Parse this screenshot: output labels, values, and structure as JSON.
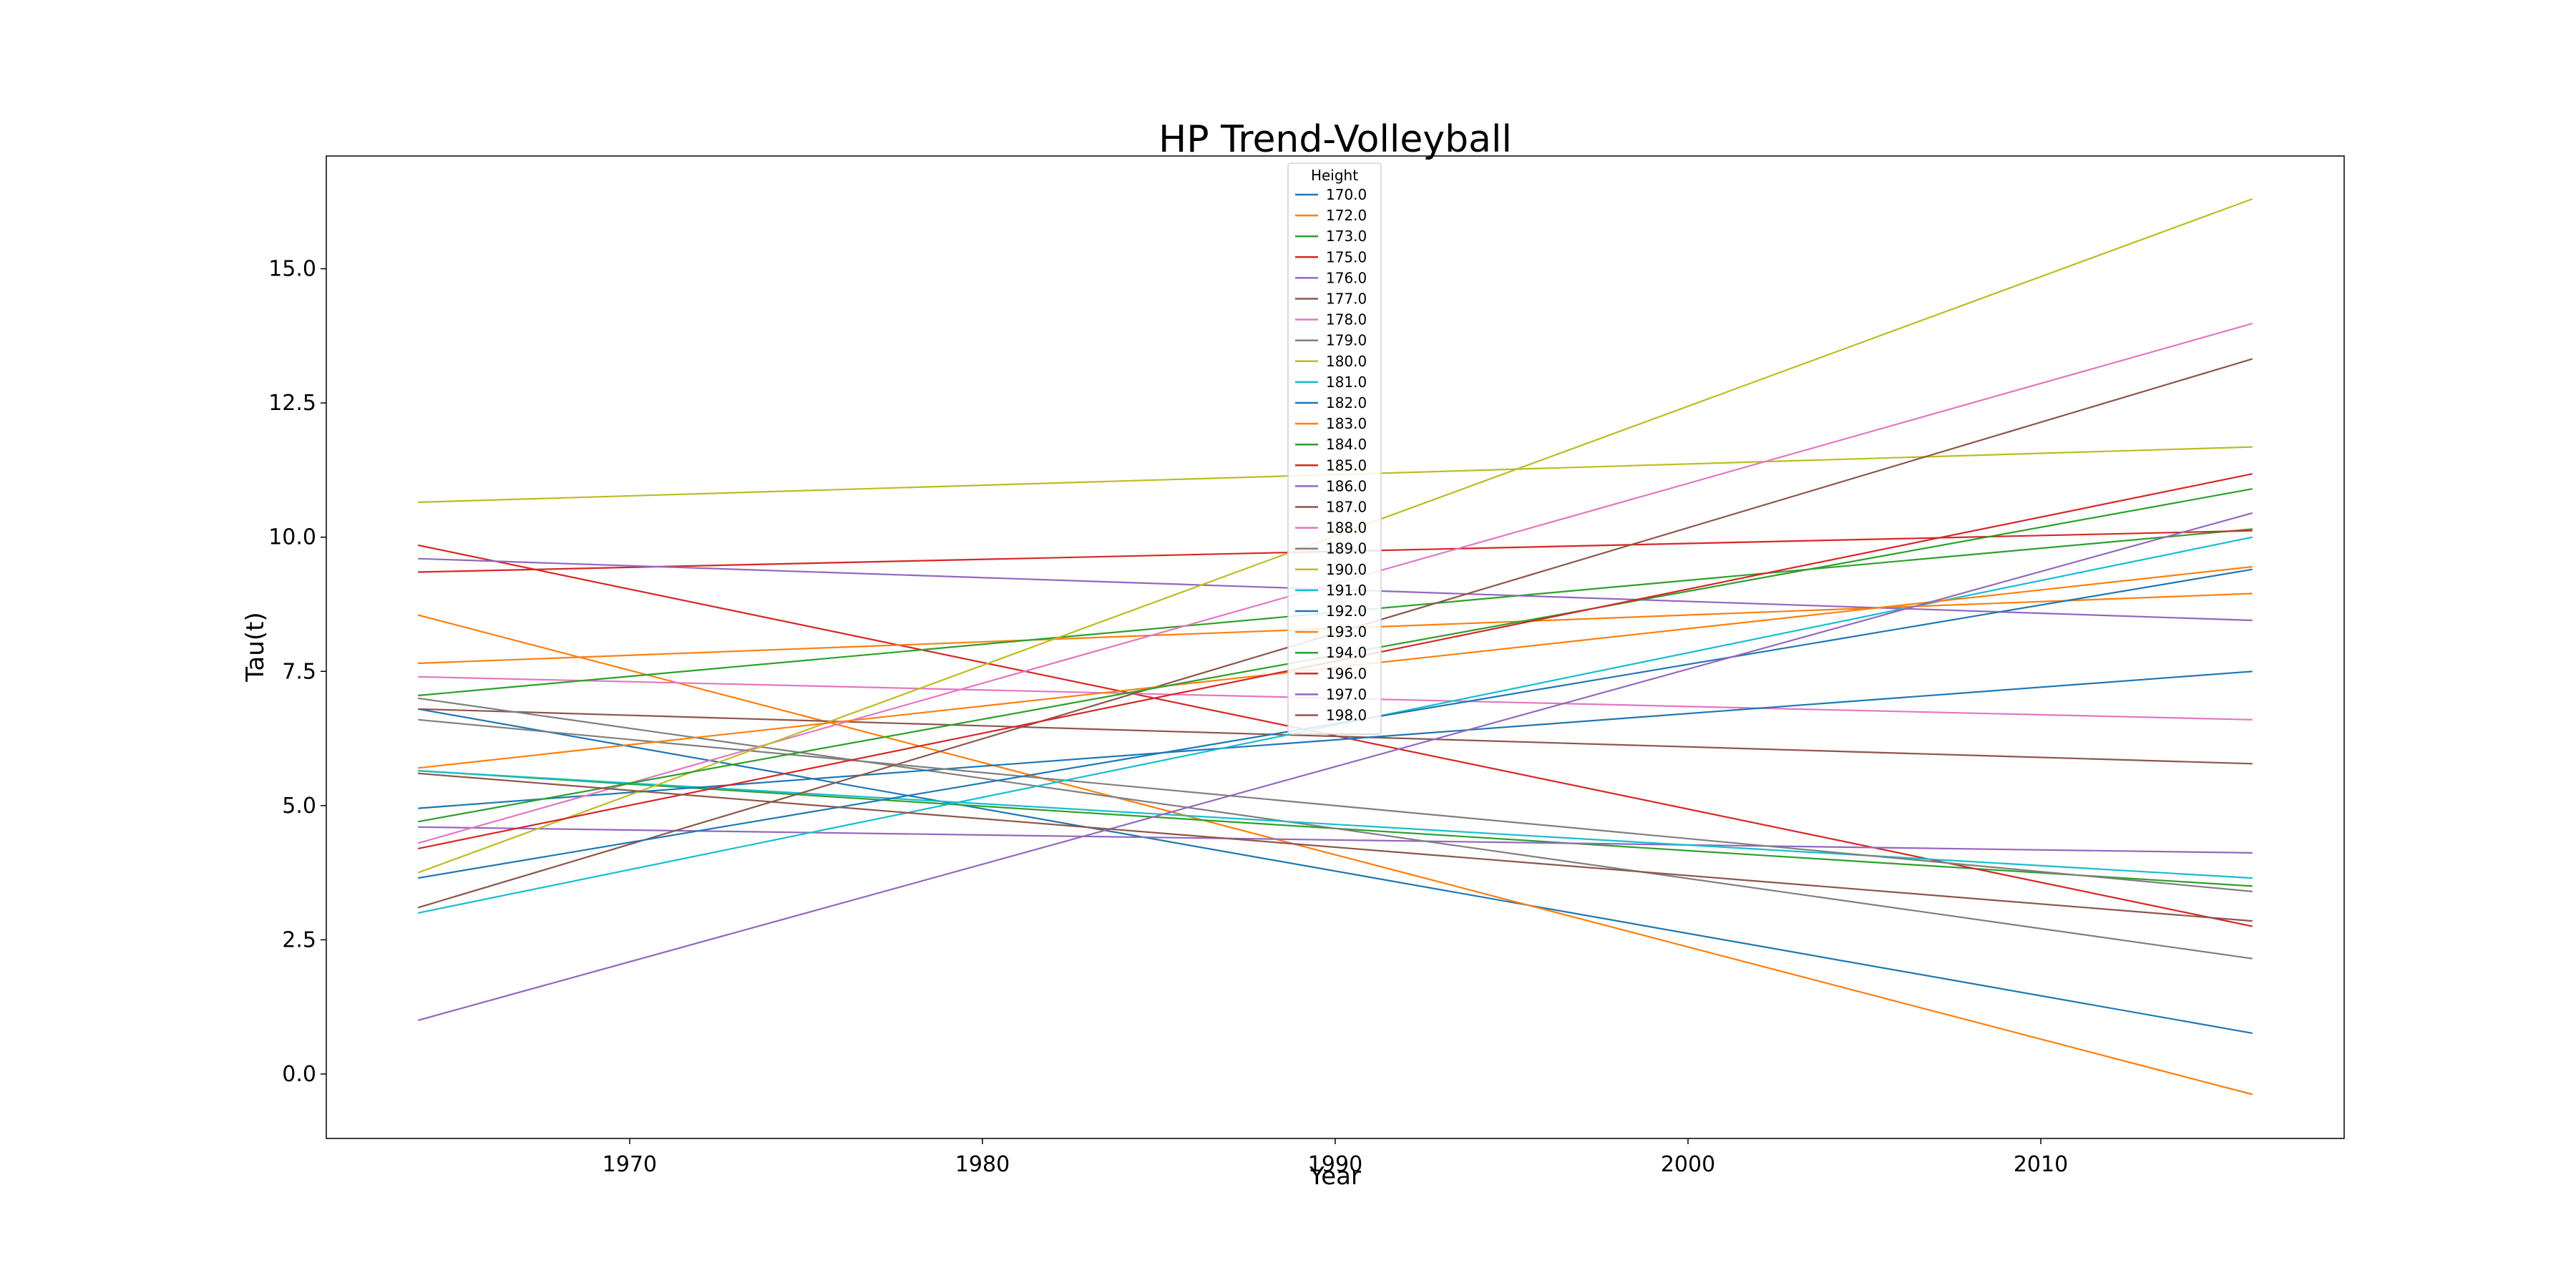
{
  "chart_data": {
    "type": "line",
    "title": "HP Trend-Volleyball",
    "xlabel": "Year",
    "ylabel": "Tau(t)",
    "xlim": [
      1961.4,
      2018.6
    ],
    "ylim": [
      -1.2,
      17.1
    ],
    "xticks": [
      1970,
      1980,
      1990,
      2000,
      2010
    ],
    "yticks": [
      0.0,
      2.5,
      5.0,
      7.5,
      10.0,
      12.5,
      15.0
    ],
    "xtick_labels": [
      "1970",
      "1980",
      "1990",
      "2000",
      "2010"
    ],
    "ytick_labels": [
      "0.0",
      "2.5",
      "5.0",
      "7.5",
      "10.0",
      "12.5",
      "15.0"
    ],
    "grid": false,
    "legend": {
      "title": "Height",
      "placement": "top-center"
    },
    "series": [
      {
        "name": "170.0",
        "color": "#1f77b4",
        "x": [
          1964,
          2016
        ],
        "values": [
          6.8,
          0.76
        ]
      },
      {
        "name": "172.0",
        "color": "#ff7f0e",
        "x": [
          1964,
          2016
        ],
        "values": [
          8.55,
          -0.38
        ]
      },
      {
        "name": "173.0",
        "color": "#2ca02c",
        "x": [
          1964,
          2016
        ],
        "values": [
          5.65,
          3.5
        ]
      },
      {
        "name": "175.0",
        "color": "#d62728",
        "x": [
          1964,
          2016
        ],
        "values": [
          9.85,
          2.75
        ]
      },
      {
        "name": "176.0",
        "color": "#9467bd",
        "x": [
          1964,
          2016
        ],
        "values": [
          4.6,
          4.12
        ]
      },
      {
        "name": "177.0",
        "color": "#8c564b",
        "x": [
          1964,
          2016
        ],
        "values": [
          6.8,
          5.78
        ]
      },
      {
        "name": "178.0",
        "color": "#e377c2",
        "x": [
          1964,
          2016
        ],
        "values": [
          7.4,
          6.6
        ]
      },
      {
        "name": "179.0",
        "color": "#7f7f7f",
        "x": [
          1964,
          2016
        ],
        "values": [
          7.0,
          2.15
        ]
      },
      {
        "name": "180.0",
        "color": "#bcbd22",
        "x": [
          1964,
          2016
        ],
        "values": [
          10.65,
          11.68
        ]
      },
      {
        "name": "181.0",
        "color": "#17becf",
        "x": [
          1964,
          2016
        ],
        "values": [
          5.65,
          3.65
        ]
      },
      {
        "name": "182.0",
        "color": "#1f77b4",
        "x": [
          1964,
          2016
        ],
        "values": [
          4.95,
          7.5
        ]
      },
      {
        "name": "183.0",
        "color": "#ff7f0e",
        "x": [
          1964,
          2016
        ],
        "values": [
          7.65,
          8.95
        ]
      },
      {
        "name": "184.0",
        "color": "#2ca02c",
        "x": [
          1964,
          2016
        ],
        "values": [
          7.05,
          10.15
        ]
      },
      {
        "name": "185.0",
        "color": "#d62728",
        "x": [
          1964,
          2016
        ],
        "values": [
          9.35,
          10.12
        ]
      },
      {
        "name": "186.0",
        "color": "#9467bd",
        "x": [
          1964,
          2016
        ],
        "values": [
          9.6,
          8.45
        ]
      },
      {
        "name": "187.0",
        "color": "#8c564b",
        "x": [
          1964,
          2016
        ],
        "values": [
          3.1,
          13.32
        ]
      },
      {
        "name": "188.0",
        "color": "#e377c2",
        "x": [
          1964,
          2016
        ],
        "values": [
          4.3,
          13.98
        ]
      },
      {
        "name": "189.0",
        "color": "#7f7f7f",
        "x": [
          1964,
          2016
        ],
        "values": [
          6.6,
          3.4
        ]
      },
      {
        "name": "190.0",
        "color": "#bcbd22",
        "x": [
          1964,
          2016
        ],
        "values": [
          3.75,
          16.3
        ]
      },
      {
        "name": "191.0",
        "color": "#17becf",
        "x": [
          1964,
          2016
        ],
        "values": [
          3.0,
          10.0
        ]
      },
      {
        "name": "192.0",
        "color": "#1f77b4",
        "x": [
          1964,
          2016
        ],
        "values": [
          3.65,
          9.4
        ]
      },
      {
        "name": "193.0",
        "color": "#ff7f0e",
        "x": [
          1964,
          2016
        ],
        "values": [
          5.7,
          9.45
        ]
      },
      {
        "name": "194.0",
        "color": "#2ca02c",
        "x": [
          1964,
          2016
        ],
        "values": [
          4.7,
          10.9
        ]
      },
      {
        "name": "196.0",
        "color": "#d62728",
        "x": [
          1964,
          2016
        ],
        "values": [
          4.2,
          11.18
        ]
      },
      {
        "name": "197.0",
        "color": "#9467bd",
        "x": [
          1964,
          2016
        ],
        "values": [
          1.0,
          10.45
        ]
      },
      {
        "name": "198.0",
        "color": "#8c564b",
        "x": [
          1964,
          2016
        ],
        "values": [
          5.6,
          2.85
        ]
      }
    ]
  }
}
